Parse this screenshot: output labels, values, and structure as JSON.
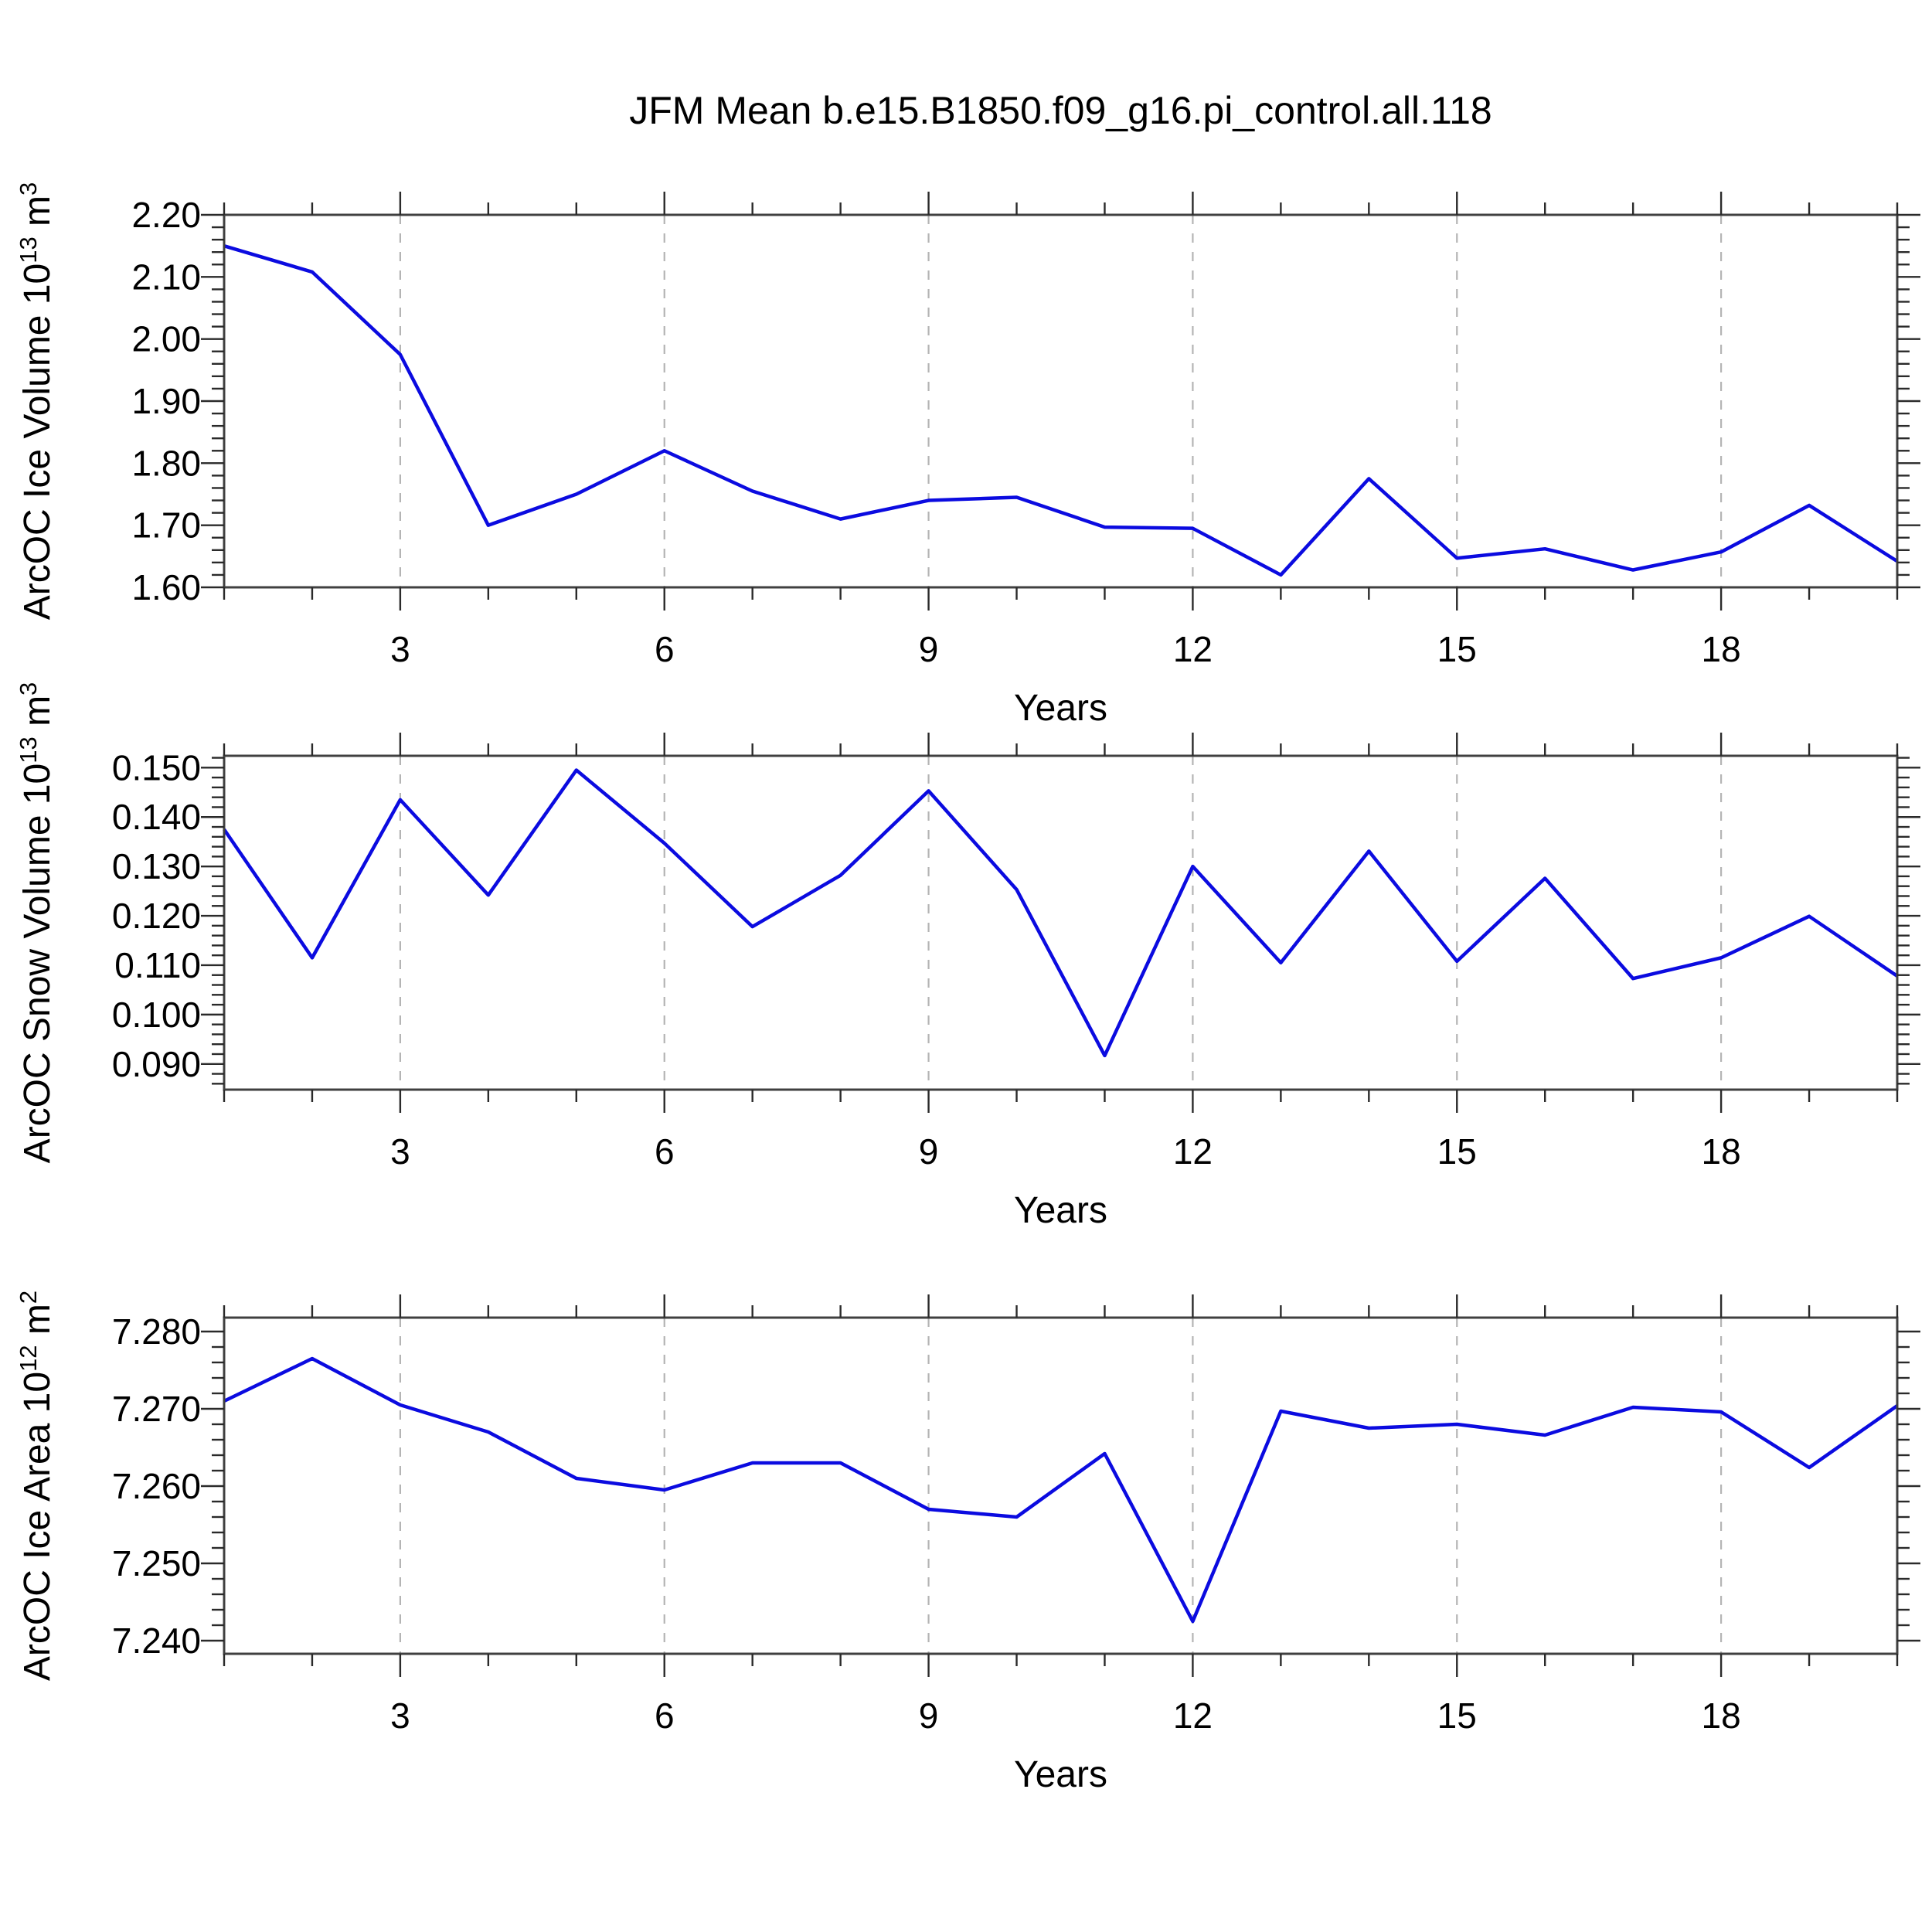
{
  "title": "JFM Mean b.e15.B1850.f09_g16.pi_control.all.118",
  "colors": {
    "line": "#0b0be0",
    "frame": "#404040",
    "tick": "#2a2a2a",
    "grid": "#b4b4b4",
    "text": "#000000"
  },
  "chart_data_common": {
    "xlabel": "Years",
    "xlim": [
      1,
      20
    ],
    "years": [
      1,
      2,
      3,
      4,
      5,
      6,
      7,
      8,
      9,
      10,
      11,
      12,
      13,
      14,
      15,
      16,
      17,
      18,
      19,
      20
    ],
    "xticks_major": [
      3,
      6,
      9,
      12,
      15,
      18
    ],
    "xtick_labels": [
      "3",
      "6",
      "9",
      "12",
      "15",
      "18"
    ],
    "grid": "vertical-dashed-at-major-ticks",
    "legend": "none"
  },
  "chart_data": [
    {
      "type": "line",
      "name": "ice-volume",
      "ylabel_text": "ArcOC Ice Volume 10^13 m^3",
      "ylabel_parts": [
        [
          "ArcOC Ice Volume 10",
          0
        ],
        [
          "13",
          1
        ],
        [
          " m",
          0
        ],
        [
          "3",
          1
        ]
      ],
      "ylim": [
        1.6,
        2.2
      ],
      "ytick_vals": [
        1.6,
        1.7,
        1.8,
        1.9,
        2.0,
        2.1,
        2.2
      ],
      "ytick_labels": [
        "1.60",
        "1.70",
        "1.80",
        "1.90",
        "2.00",
        "2.10",
        "2.20"
      ],
      "yminor_step": 0.02,
      "values": [
        2.15,
        2.108,
        1.975,
        1.7,
        1.75,
        1.82,
        1.755,
        1.71,
        1.74,
        1.745,
        1.697,
        1.695,
        1.62,
        1.775,
        1.647,
        1.662,
        1.628,
        1.657,
        1.732,
        1.642
      ]
    },
    {
      "type": "line",
      "name": "snow-volume",
      "ylabel_text": "ArcOC Snow Volume 10^13 m^3",
      "ylabel_parts": [
        [
          "ArcOC Snow Volume 10",
          0
        ],
        [
          "13",
          1
        ],
        [
          " m",
          0
        ],
        [
          "3",
          1
        ]
      ],
      "ylim": [
        0.0848,
        0.1524
      ],
      "ytick_vals": [
        0.09,
        0.1,
        0.11,
        0.12,
        0.13,
        0.14,
        0.15
      ],
      "ytick_labels": [
        "0.090",
        "0.100",
        "0.110",
        "0.120",
        "0.130",
        "0.140",
        "0.150"
      ],
      "yminor_step": 0.002,
      "values": [
        0.1375,
        0.1115,
        0.1435,
        0.1242,
        0.1495,
        0.1347,
        0.1178,
        0.1282,
        0.1453,
        0.1253,
        0.0917,
        0.13,
        0.1105,
        0.1331,
        0.1108,
        0.1276,
        0.1073,
        0.1115,
        0.1199,
        0.1078
      ]
    },
    {
      "type": "line",
      "name": "ice-area",
      "ylabel_text": "ArcOC Ice Area 10^12 m^2",
      "ylabel_parts": [
        [
          "ArcOC Ice Area 10",
          0
        ],
        [
          "12",
          1
        ],
        [
          " m",
          0
        ],
        [
          "2",
          1
        ]
      ],
      "ylim": [
        7.2383,
        7.2818
      ],
      "ytick_vals": [
        7.24,
        7.25,
        7.26,
        7.27,
        7.28
      ],
      "ytick_labels": [
        "7.240",
        "7.250",
        "7.260",
        "7.270",
        "7.280"
      ],
      "yminor_step": 0.002,
      "values": [
        7.271,
        7.2765,
        7.2705,
        7.267,
        7.261,
        7.2595,
        7.263,
        7.263,
        7.257,
        7.256,
        7.2642,
        7.2425,
        7.2697,
        7.2675,
        7.268,
        7.2666,
        7.2702,
        7.2696,
        7.2624,
        7.2704
      ]
    }
  ]
}
